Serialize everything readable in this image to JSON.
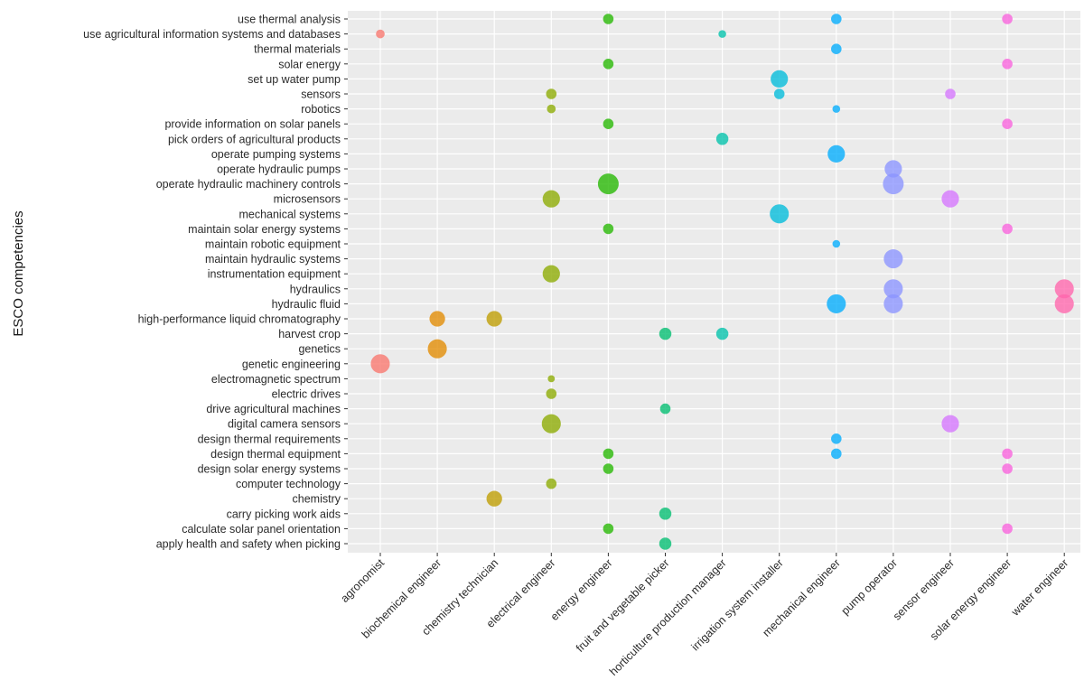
{
  "chart_data": {
    "type": "scatter",
    "title": "",
    "xlabel": "",
    "ylabel": "ESCO competencies",
    "grid": true,
    "legend": "none",
    "categories_x": [
      "agronomist",
      "biochemical engineer",
      "chemistry technician",
      "electrical engineer",
      "energy engineer",
      "fruit and vegetable picker",
      "horticulture production manager",
      "irrigation system installer",
      "mechanical engineer",
      "pump operator",
      "sensor engineer",
      "solar energy engineer",
      "water engineer"
    ],
    "categories_y": [
      "use thermal analysis",
      "use agricultural information systems and databases",
      "thermal materials",
      "solar energy",
      "set up water pump",
      "sensors",
      "robotics",
      "provide information on solar panels",
      "pick orders of agricultural products",
      "operate pumping systems",
      "operate hydraulic pumps",
      "operate hydraulic machinery controls",
      "microsensors",
      "mechanical systems",
      "maintain solar energy systems",
      "maintain robotic equipment",
      "maintain hydraulic systems",
      "instrumentation equipment",
      "hydraulics",
      "hydraulic fluid",
      "high-performance liquid chromatography",
      "harvest crop",
      "genetics",
      "genetic engineering",
      "electromagnetic spectrum",
      "electric drives",
      "drive agricultural machines",
      "digital camera sensors",
      "design thermal requirements",
      "design thermal equipment",
      "design solar energy systems",
      "computer technology",
      "chemistry",
      "carry picking work aids",
      "calculate solar panel orientation",
      "apply health and safety when picking"
    ],
    "colors": {
      "agronomist": "#F8766D",
      "biochemical engineer": "#E18A00",
      "chemistry technician": "#BE9C00",
      "electrical engineer": "#8CAB00",
      "energy engineer": "#24B700",
      "fruit and vegetable picker": "#00BE70",
      "horticulture production manager": "#00C1AB",
      "irrigation system installer": "#00BBDA",
      "mechanical engineer": "#00ACFC",
      "pump operator": "#8B93FF",
      "sensor engineer": "#D575FE",
      "solar energy engineer": "#F962DD",
      "water engineer": "#FF65AC"
    },
    "points": [
      {
        "x": "energy engineer",
        "y": "use thermal analysis",
        "size": 2
      },
      {
        "x": "mechanical engineer",
        "y": "use thermal analysis",
        "size": 2
      },
      {
        "x": "solar energy engineer",
        "y": "use thermal analysis",
        "size": 2
      },
      {
        "x": "agronomist",
        "y": "use agricultural information systems and databases",
        "size": 1.5
      },
      {
        "x": "horticulture production manager",
        "y": "use agricultural information systems and databases",
        "size": 1.2
      },
      {
        "x": "mechanical engineer",
        "y": "thermal materials",
        "size": 2
      },
      {
        "x": "energy engineer",
        "y": "solar energy",
        "size": 2
      },
      {
        "x": "solar energy engineer",
        "y": "solar energy",
        "size": 2
      },
      {
        "x": "irrigation system installer",
        "y": "set up water pump",
        "size": 4
      },
      {
        "x": "electrical engineer",
        "y": "sensors",
        "size": 2
      },
      {
        "x": "irrigation system installer",
        "y": "sensors",
        "size": 2
      },
      {
        "x": "sensor engineer",
        "y": "sensors",
        "size": 2
      },
      {
        "x": "electrical engineer",
        "y": "robotics",
        "size": 1.5
      },
      {
        "x": "mechanical engineer",
        "y": "robotics",
        "size": 1.2
      },
      {
        "x": "energy engineer",
        "y": "provide information on solar panels",
        "size": 2
      },
      {
        "x": "solar energy engineer",
        "y": "provide information on solar panels",
        "size": 2
      },
      {
        "x": "horticulture production manager",
        "y": "pick orders of agricultural products",
        "size": 2.5
      },
      {
        "x": "mechanical engineer",
        "y": "operate pumping systems",
        "size": 4
      },
      {
        "x": "pump operator",
        "y": "operate hydraulic pumps",
        "size": 4
      },
      {
        "x": "energy engineer",
        "y": "operate hydraulic machinery controls",
        "size": 5
      },
      {
        "x": "pump operator",
        "y": "operate hydraulic machinery controls",
        "size": 5
      },
      {
        "x": "electrical engineer",
        "y": "microsensors",
        "size": 4
      },
      {
        "x": "sensor engineer",
        "y": "microsensors",
        "size": 4
      },
      {
        "x": "irrigation system installer",
        "y": "mechanical systems",
        "size": 4.5
      },
      {
        "x": "energy engineer",
        "y": "maintain solar energy systems",
        "size": 2
      },
      {
        "x": "solar energy engineer",
        "y": "maintain solar energy systems",
        "size": 2
      },
      {
        "x": "mechanical engineer",
        "y": "maintain robotic equipment",
        "size": 1.2
      },
      {
        "x": "pump operator",
        "y": "maintain hydraulic systems",
        "size": 4.5
      },
      {
        "x": "electrical engineer",
        "y": "instrumentation equipment",
        "size": 4
      },
      {
        "x": "pump operator",
        "y": "hydraulics",
        "size": 4.5
      },
      {
        "x": "water engineer",
        "y": "hydraulics",
        "size": 4.5
      },
      {
        "x": "mechanical engineer",
        "y": "hydraulic fluid",
        "size": 4.5
      },
      {
        "x": "pump operator",
        "y": "hydraulic fluid",
        "size": 4.5
      },
      {
        "x": "water engineer",
        "y": "hydraulic fluid",
        "size": 4.5
      },
      {
        "x": "biochemical engineer",
        "y": "high-performance liquid chromatography",
        "size": 3.5
      },
      {
        "x": "chemistry technician",
        "y": "high-performance liquid chromatography",
        "size": 3.5
      },
      {
        "x": "fruit and vegetable picker",
        "y": "harvest crop",
        "size": 2.5
      },
      {
        "x": "horticulture production manager",
        "y": "harvest crop",
        "size": 2.5
      },
      {
        "x": "biochemical engineer",
        "y": "genetics",
        "size": 4.5
      },
      {
        "x": "agronomist",
        "y": "genetic engineering",
        "size": 4.5
      },
      {
        "x": "electrical engineer",
        "y": "electromagnetic spectrum",
        "size": 1
      },
      {
        "x": "electrical engineer",
        "y": "electric drives",
        "size": 2
      },
      {
        "x": "fruit and vegetable picker",
        "y": "drive agricultural machines",
        "size": 2
      },
      {
        "x": "electrical engineer",
        "y": "digital camera sensors",
        "size": 4.5
      },
      {
        "x": "sensor engineer",
        "y": "digital camera sensors",
        "size": 4
      },
      {
        "x": "mechanical engineer",
        "y": "design thermal requirements",
        "size": 2
      },
      {
        "x": "energy engineer",
        "y": "design thermal equipment",
        "size": 2
      },
      {
        "x": "mechanical engineer",
        "y": "design thermal equipment",
        "size": 2
      },
      {
        "x": "solar energy engineer",
        "y": "design thermal equipment",
        "size": 2
      },
      {
        "x": "energy engineer",
        "y": "design solar energy systems",
        "size": 2
      },
      {
        "x": "solar energy engineer",
        "y": "design solar energy systems",
        "size": 2
      },
      {
        "x": "electrical engineer",
        "y": "computer technology",
        "size": 2
      },
      {
        "x": "chemistry technician",
        "y": "chemistry",
        "size": 3.5
      },
      {
        "x": "fruit and vegetable picker",
        "y": "carry picking work aids",
        "size": 2.5
      },
      {
        "x": "energy engineer",
        "y": "calculate solar panel orientation",
        "size": 2
      },
      {
        "x": "solar energy engineer",
        "y": "calculate solar panel orientation",
        "size": 2
      },
      {
        "x": "fruit and vegetable picker",
        "y": "apply health and safety when picking",
        "size": 2.5
      }
    ]
  }
}
